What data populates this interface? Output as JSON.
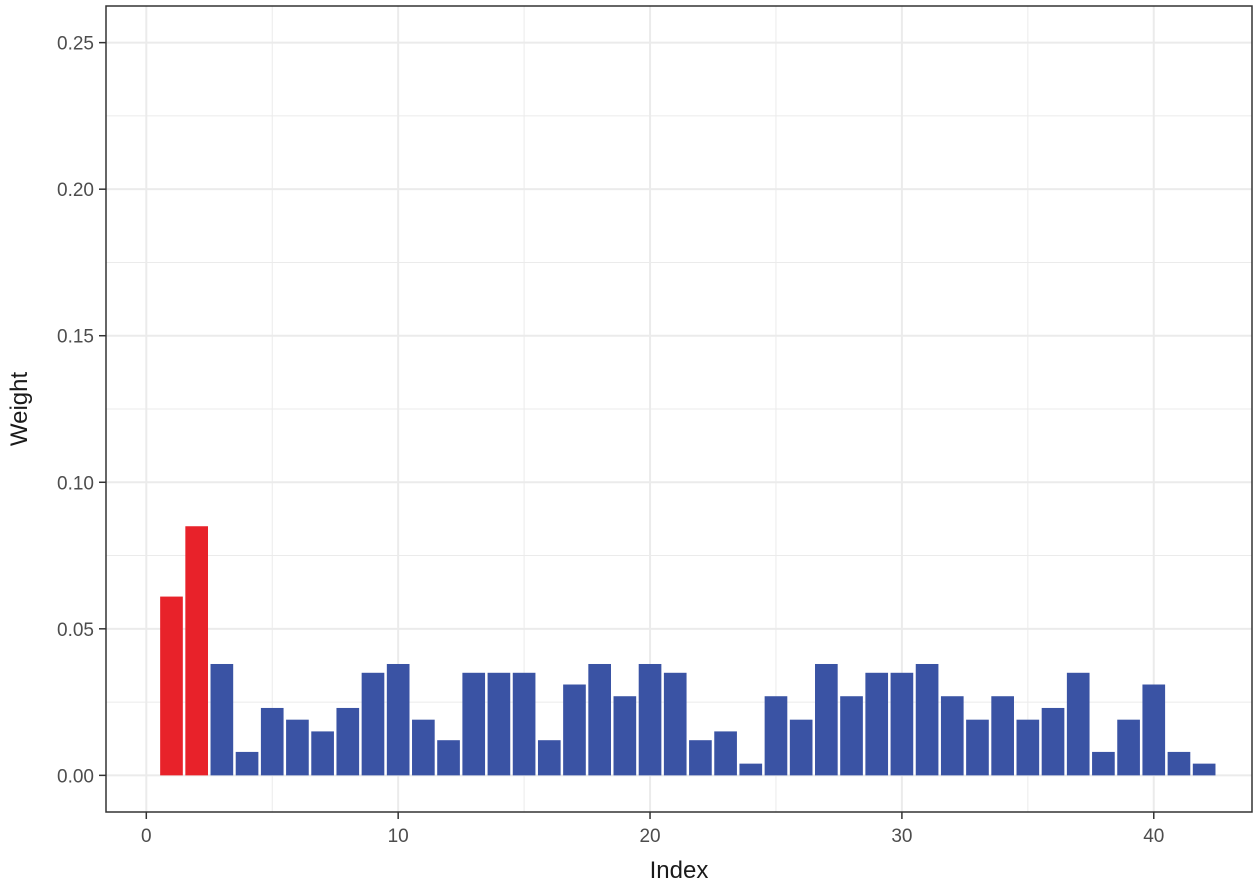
{
  "chart_data": {
    "type": "bar",
    "title": "",
    "xlabel": "Index",
    "ylabel": "Weight",
    "xlim": [
      -1.6,
      43.9
    ],
    "ylim": [
      -0.0125,
      0.2625
    ],
    "x_ticks": [
      0,
      10,
      20,
      30,
      40
    ],
    "x_tick_labels": [
      "0",
      "10",
      "20",
      "30",
      "40"
    ],
    "y_ticks": [
      0.0,
      0.05,
      0.1,
      0.15,
      0.2,
      0.25
    ],
    "y_tick_labels": [
      "0.00",
      "0.05",
      "0.10",
      "0.15",
      "0.20",
      "0.25"
    ],
    "grid": true,
    "x": [
      1,
      2,
      3,
      4,
      5,
      6,
      7,
      8,
      9,
      10,
      11,
      12,
      13,
      14,
      15,
      16,
      17,
      18,
      19,
      20,
      21,
      22,
      23,
      24,
      25,
      26,
      27,
      28,
      29,
      30,
      31,
      32,
      33,
      34,
      35,
      36,
      37,
      38,
      39,
      40,
      41,
      42
    ],
    "values": [
      0.061,
      0.085,
      0.038,
      0.008,
      0.023,
      0.019,
      0.015,
      0.023,
      0.035,
      0.038,
      0.019,
      0.012,
      0.035,
      0.035,
      0.035,
      0.012,
      0.031,
      0.038,
      0.027,
      0.038,
      0.035,
      0.012,
      0.015,
      0.004,
      0.027,
      0.019,
      0.038,
      0.027,
      0.035,
      0.035,
      0.038,
      0.027,
      0.019,
      0.027,
      0.019,
      0.023,
      0.035,
      0.008,
      0.019,
      0.031,
      0.008,
      0.004
    ],
    "colors": [
      "#e8222a",
      "#e8222a",
      "#3a53a4",
      "#3a53a4",
      "#3a53a4",
      "#3a53a4",
      "#3a53a4",
      "#3a53a4",
      "#3a53a4",
      "#3a53a4",
      "#3a53a4",
      "#3a53a4",
      "#3a53a4",
      "#3a53a4",
      "#3a53a4",
      "#3a53a4",
      "#3a53a4",
      "#3a53a4",
      "#3a53a4",
      "#3a53a4",
      "#3a53a4",
      "#3a53a4",
      "#3a53a4",
      "#3a53a4",
      "#3a53a4",
      "#3a53a4",
      "#3a53a4",
      "#3a53a4",
      "#3a53a4",
      "#3a53a4",
      "#3a53a4",
      "#3a53a4",
      "#3a53a4",
      "#3a53a4",
      "#3a53a4",
      "#3a53a4",
      "#3a53a4",
      "#3a53a4",
      "#3a53a4",
      "#3a53a4",
      "#3a53a4",
      "#3a53a4"
    ],
    "highlight_color": "#e8222a",
    "bar_color": "#3a53a4",
    "panel_border_color": "#333333",
    "grid_color": "#ebebeb"
  }
}
